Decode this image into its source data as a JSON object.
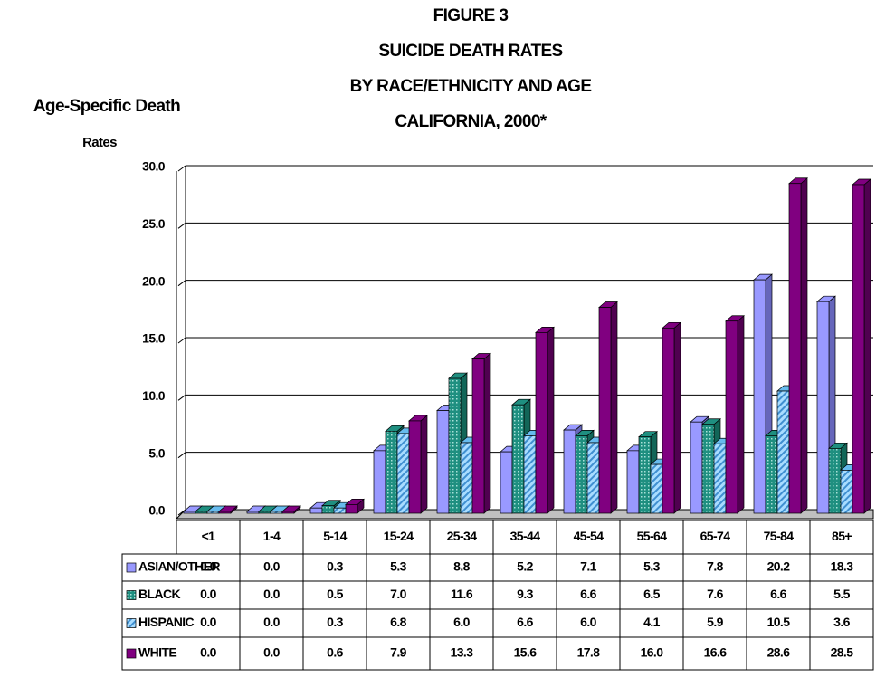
{
  "chart_data": {
    "type": "bar",
    "title": [
      "FIGURE 3",
      "SUICIDE DEATH RATES",
      "BY RACE/ETHNICITY AND AGE",
      "CALIFORNIA, 2000*"
    ],
    "ylabel": [
      "Age-Specific Death",
      "Rates"
    ],
    "categories": [
      "<1",
      "1-4",
      "5-14",
      "15-24",
      "25-34",
      "35-44",
      "45-54",
      "55-64",
      "65-74",
      "75-84",
      "85+"
    ],
    "series": [
      {
        "name": "ASIAN/OTHER",
        "color": "#9999ff",
        "values": [
          0,
          0,
          0.3,
          5.3,
          8.8,
          5.2,
          7.1,
          5.3,
          7.8,
          20.2,
          18.3
        ],
        "value_labels": [
          "0.0",
          "0.0",
          "0.3",
          "5.3",
          "8.8",
          "5.2",
          "7.1",
          "5.3",
          "7.8",
          "20.2",
          "18.3"
        ]
      },
      {
        "name": "BLACK",
        "color": "#1f8f80",
        "values": [
          0,
          0,
          0.5,
          7.0,
          11.6,
          9.3,
          6.6,
          6.5,
          7.6,
          6.6,
          5.5
        ],
        "value_labels": [
          "0.0",
          "0.0",
          "0.5",
          "7.0",
          "11.6",
          "9.3",
          "6.6",
          "6.5",
          "7.6",
          "6.6",
          "5.5"
        ]
      },
      {
        "name": "HISPANIC",
        "color": "#66bbee",
        "values": [
          0,
          0,
          0.3,
          6.8,
          6.0,
          6.6,
          6.0,
          4.1,
          5.9,
          10.5,
          3.6
        ],
        "value_labels": [
          "0.0",
          "0.0",
          "0.3",
          "6.8",
          "6.0",
          "6.6",
          "6.0",
          "4.1",
          "5.9",
          "10.5",
          "3.6"
        ]
      },
      {
        "name": "WHITE",
        "color": "#800080",
        "values": [
          0,
          0,
          0.6,
          7.9,
          13.3,
          15.6,
          17.8,
          16.0,
          16.6,
          28.6,
          28.5
        ],
        "value_labels": [
          "0.0",
          "0.0",
          "0.6",
          "7.9",
          "13.3",
          "15.6",
          "17.8",
          "16.0",
          "16.6",
          "28.6",
          "28.5"
        ]
      }
    ],
    "ylim": [
      0,
      30
    ],
    "yticks": [
      {
        "value": 0,
        "label": "0.0"
      },
      {
        "value": 5,
        "label": "5.0"
      },
      {
        "value": 10,
        "label": "10.0"
      },
      {
        "value": 15,
        "label": "15.0"
      },
      {
        "value": 20,
        "label": "20.0"
      },
      {
        "value": 25,
        "label": "25.0"
      },
      {
        "value": 30,
        "label": "30.0"
      }
    ],
    "grid": true
  }
}
